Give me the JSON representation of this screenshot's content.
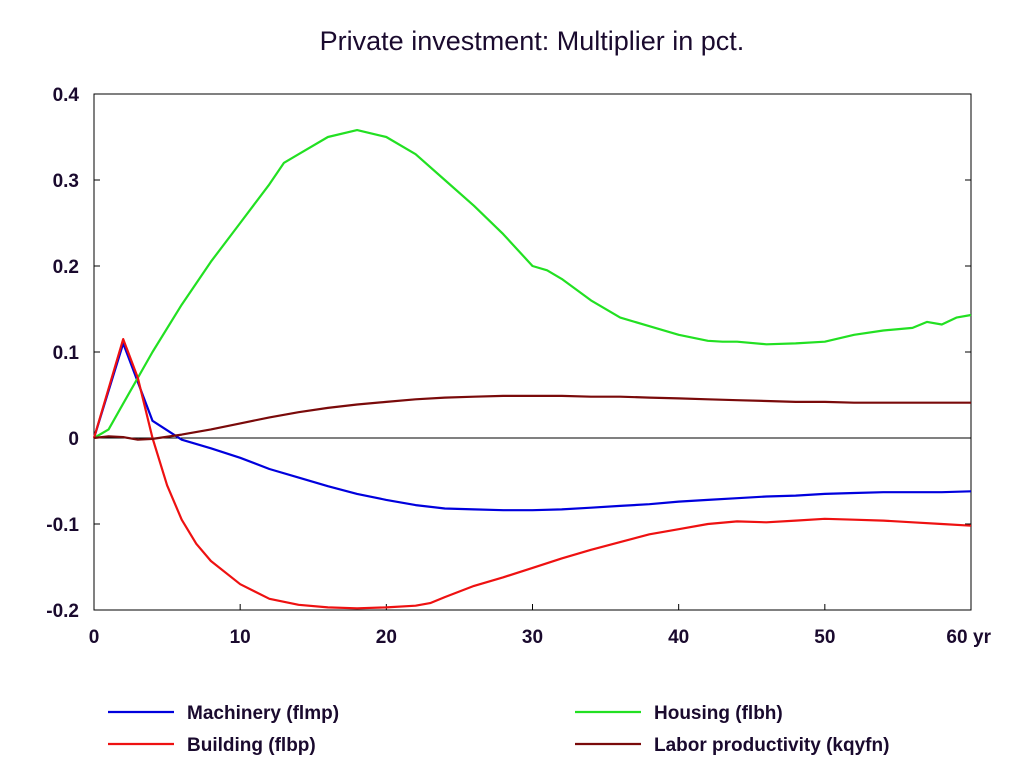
{
  "chart_data": {
    "type": "line",
    "title": "Private investment: Multiplier in pct.",
    "xlabel": "",
    "ylabel": "",
    "x_unit_label": "yr",
    "xlim": [
      0,
      60
    ],
    "ylim": [
      -0.2,
      0.4
    ],
    "xticks": [
      0,
      10,
      20,
      30,
      40,
      50,
      60
    ],
    "xtick_labels": [
      "0",
      "10",
      "20",
      "30",
      "40",
      "50",
      "60"
    ],
    "yticks": [
      0.4,
      0.3,
      0.2,
      0.1,
      0,
      -0.1,
      -0.2
    ],
    "ytick_labels": [
      "0.4",
      "0.3",
      "0.2",
      "0.1",
      "0",
      "-0.1",
      "-0.2"
    ],
    "grid": false,
    "zero_line": true,
    "legend_position": "bottom",
    "series": [
      {
        "name": "Machinery (flmp)",
        "color": "#0000dd",
        "x": [
          0,
          2,
          4,
          6,
          8,
          10,
          12,
          14,
          16,
          18,
          20,
          22,
          24,
          26,
          28,
          30,
          32,
          34,
          36,
          38,
          40,
          42,
          44,
          46,
          48,
          50,
          52,
          54,
          56,
          58,
          60
        ],
        "y": [
          0,
          0.11,
          0.02,
          -0.002,
          -0.012,
          -0.023,
          -0.036,
          -0.046,
          -0.056,
          -0.065,
          -0.072,
          -0.078,
          -0.082,
          -0.083,
          -0.084,
          -0.084,
          -0.083,
          -0.081,
          -0.079,
          -0.077,
          -0.074,
          -0.072,
          -0.07,
          -0.068,
          -0.067,
          -0.065,
          -0.064,
          -0.063,
          -0.063,
          -0.063,
          -0.062
        ]
      },
      {
        "name": "Housing (flbh)",
        "color": "#22e022",
        "x": [
          0,
          1,
          2,
          4,
          6,
          8,
          10,
          12,
          13,
          14,
          16,
          18,
          20,
          22,
          24,
          26,
          28,
          30,
          31,
          32,
          34,
          36,
          38,
          40,
          42,
          43,
          44,
          46,
          48,
          50,
          52,
          54,
          56,
          57,
          58,
          59,
          60
        ],
        "y": [
          0,
          0.01,
          0.04,
          0.1,
          0.155,
          0.205,
          0.25,
          0.295,
          0.32,
          0.33,
          0.35,
          0.358,
          0.35,
          0.33,
          0.3,
          0.27,
          0.237,
          0.2,
          0.195,
          0.185,
          0.16,
          0.14,
          0.13,
          0.12,
          0.113,
          0.112,
          0.112,
          0.109,
          0.11,
          0.112,
          0.12,
          0.125,
          0.128,
          0.135,
          0.132,
          0.14,
          0.143
        ]
      },
      {
        "name": "Building (flbp)",
        "color": "#ee1111",
        "x": [
          0,
          2,
          3,
          4,
          5,
          6,
          7,
          8,
          10,
          12,
          14,
          16,
          18,
          20,
          22,
          23,
          24,
          26,
          28,
          30,
          32,
          34,
          36,
          38,
          40,
          42,
          44,
          46,
          48,
          50,
          52,
          54,
          56,
          58,
          60
        ],
        "y": [
          0,
          0.115,
          0.07,
          0,
          -0.055,
          -0.095,
          -0.123,
          -0.143,
          -0.17,
          -0.187,
          -0.194,
          -0.197,
          -0.198,
          -0.197,
          -0.195,
          -0.192,
          -0.185,
          -0.172,
          -0.162,
          -0.151,
          -0.14,
          -0.13,
          -0.121,
          -0.112,
          -0.106,
          -0.1,
          -0.097,
          -0.098,
          -0.096,
          -0.094,
          -0.095,
          -0.096,
          -0.098,
          -0.1,
          -0.102
        ]
      },
      {
        "name": "Labor productivity (kqyfn)",
        "color": "#7a0a0a",
        "x": [
          0,
          1,
          2,
          3,
          4,
          6,
          8,
          10,
          12,
          14,
          16,
          18,
          20,
          22,
          24,
          26,
          28,
          30,
          32,
          34,
          36,
          38,
          40,
          42,
          44,
          46,
          48,
          50,
          52,
          54,
          56,
          58,
          60
        ],
        "y": [
          0,
          0.002,
          0.001,
          -0.002,
          -0.001,
          0.004,
          0.01,
          0.017,
          0.024,
          0.03,
          0.035,
          0.039,
          0.042,
          0.045,
          0.047,
          0.048,
          0.049,
          0.049,
          0.049,
          0.048,
          0.048,
          0.047,
          0.046,
          0.045,
          0.044,
          0.043,
          0.042,
          0.042,
          0.041,
          0.041,
          0.041,
          0.041,
          0.041
        ]
      }
    ]
  }
}
